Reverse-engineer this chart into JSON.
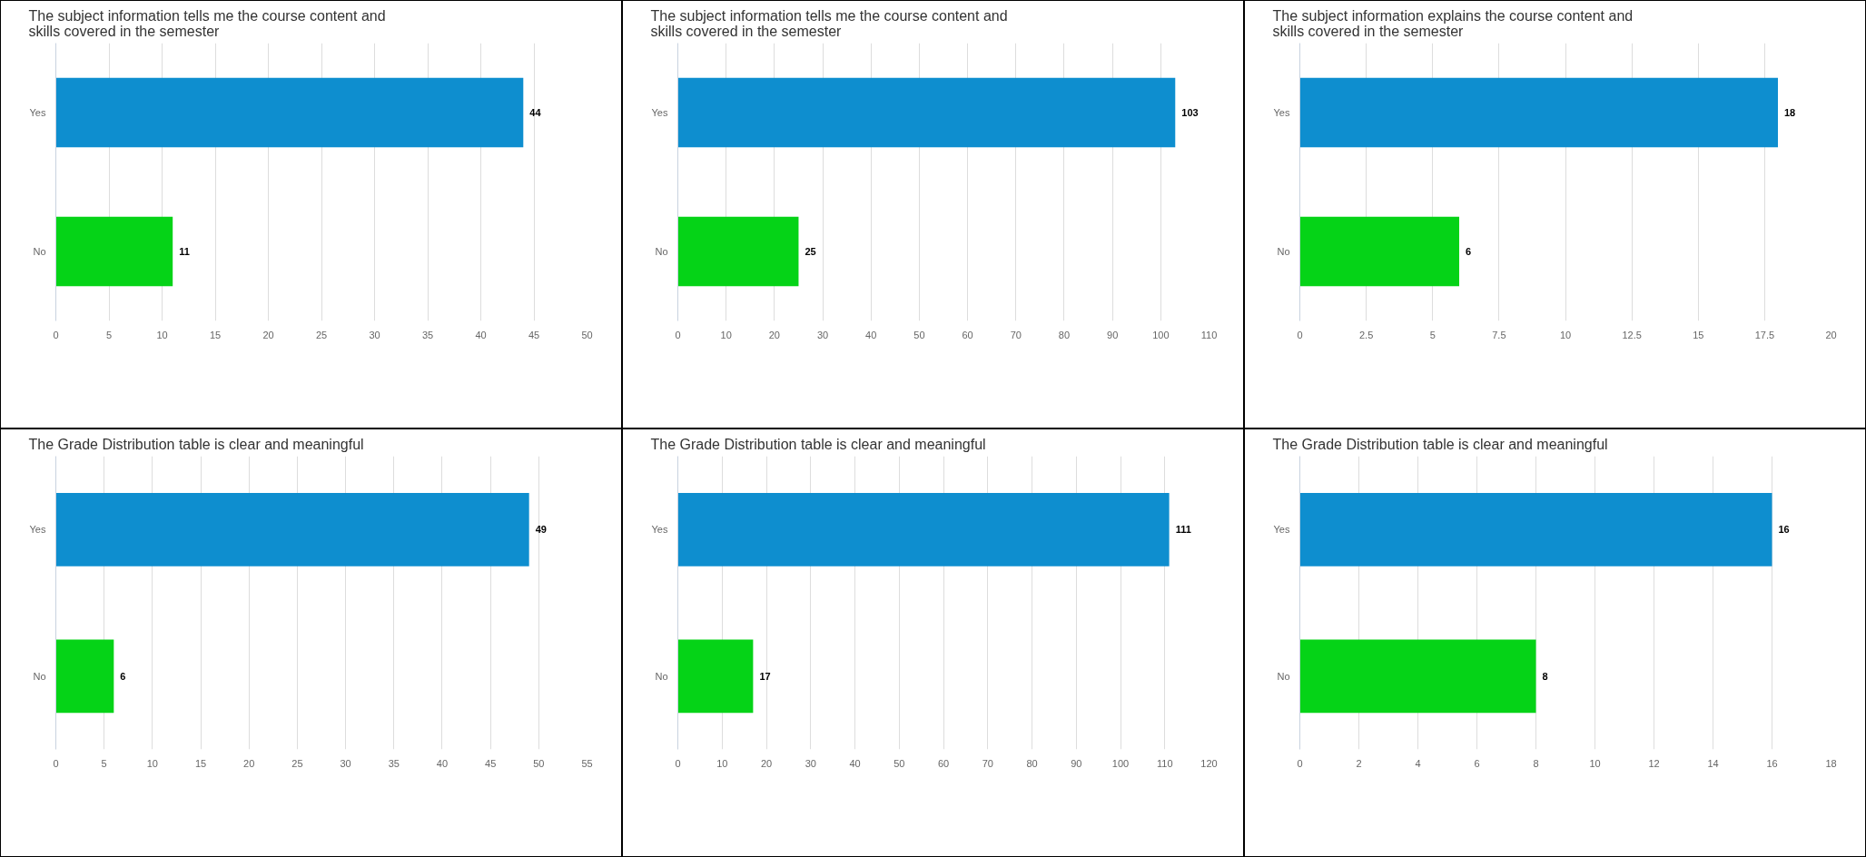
{
  "chart_data": [
    {
      "type": "bar",
      "orientation": "horizontal",
      "title": "  The subject information tells me the course content and\nskills covered in the semester",
      "categories": [
        "Yes",
        "No"
      ],
      "values": [
        44,
        11
      ],
      "colors": [
        "#0e8ecf",
        "#05d317"
      ],
      "xlim": [
        0,
        50
      ],
      "xticks": [
        0,
        5,
        10,
        15,
        20,
        25,
        30,
        35,
        40,
        45,
        50
      ],
      "grid": "x",
      "data_labels": true
    },
    {
      "type": "bar",
      "orientation": "horizontal",
      "title": "  The subject information tells me the course content and\nskills covered in the semester",
      "categories": [
        "Yes",
        "No"
      ],
      "values": [
        103,
        25
      ],
      "colors": [
        "#0e8ecf",
        "#05d317"
      ],
      "xlim": [
        0,
        110
      ],
      "xticks": [
        0,
        10,
        20,
        30,
        40,
        50,
        60,
        70,
        80,
        90,
        100,
        110
      ],
      "grid": "x",
      "data_labels": true
    },
    {
      "type": "bar",
      "orientation": "horizontal",
      "title": "  The subject information explains the course content and\nskills covered in the semester",
      "categories": [
        "Yes",
        "No"
      ],
      "values": [
        18,
        6
      ],
      "colors": [
        "#0e8ecf",
        "#05d317"
      ],
      "xlim": [
        0,
        20
      ],
      "xticks": [
        0,
        2.5,
        5,
        7.5,
        10,
        12.5,
        15,
        17.5,
        20
      ],
      "grid": "x",
      "data_labels": true
    },
    {
      "type": "bar",
      "orientation": "horizontal",
      "title": "The Grade Distribution table is clear and meaningful",
      "categories": [
        "Yes",
        "No"
      ],
      "values": [
        49,
        6
      ],
      "colors": [
        "#0e8ecf",
        "#05d317"
      ],
      "xlim": [
        0,
        55
      ],
      "xticks": [
        0,
        5,
        10,
        15,
        20,
        25,
        30,
        35,
        40,
        45,
        50,
        55
      ],
      "grid": "x",
      "data_labels": true
    },
    {
      "type": "bar",
      "orientation": "horizontal",
      "title": "The Grade Distribution table is clear and meaningful",
      "categories": [
        "Yes",
        "No"
      ],
      "values": [
        111,
        17
      ],
      "colors": [
        "#0e8ecf",
        "#05d317"
      ],
      "xlim": [
        0,
        120
      ],
      "xticks": [
        0,
        10,
        20,
        30,
        40,
        50,
        60,
        70,
        80,
        90,
        100,
        110,
        120
      ],
      "grid": "x",
      "data_labels": true
    },
    {
      "type": "bar",
      "orientation": "horizontal",
      "title": "The Grade Distribution table is clear and meaningful",
      "categories": [
        "Yes",
        "No"
      ],
      "values": [
        16,
        8
      ],
      "colors": [
        "#0e8ecf",
        "#05d317"
      ],
      "xlim": [
        0,
        18
      ],
      "xticks": [
        0,
        2,
        4,
        6,
        8,
        10,
        12,
        14,
        16,
        18
      ],
      "grid": "x",
      "data_labels": true
    }
  ]
}
